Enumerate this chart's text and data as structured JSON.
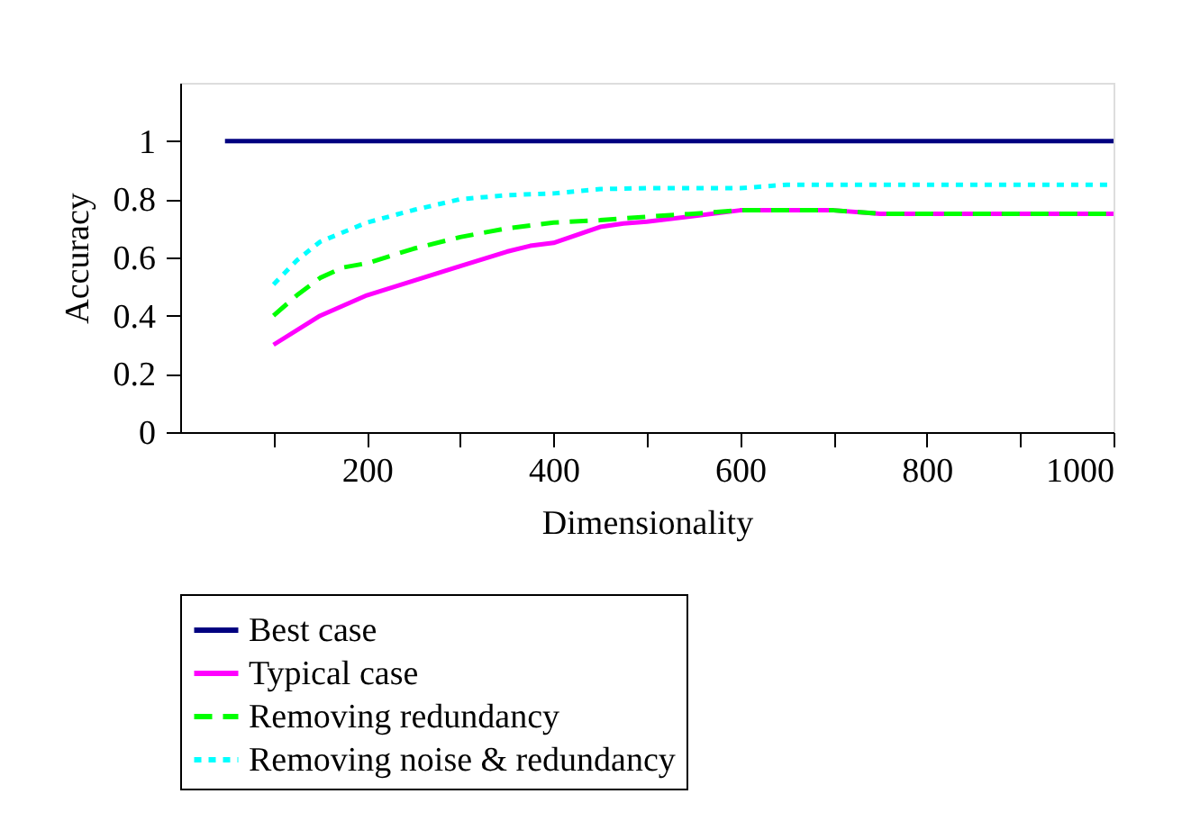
{
  "chart_data": {
    "type": "line",
    "xlabel": "Dimensionality",
    "ylabel": "Accuracy",
    "xlim": [
      0,
      1000
    ],
    "ylim": [
      0,
      1.2
    ],
    "xticks": [
      {
        "value": 100,
        "label": null
      },
      200,
      {
        "value": 300,
        "label": null
      },
      400,
      {
        "value": 500,
        "label": null
      },
      600,
      {
        "value": 700,
        "label": null
      },
      800,
      {
        "value": 900,
        "label": null
      },
      1000
    ],
    "yticks": [
      0,
      0.2,
      0.4,
      0.6,
      0.8,
      1
    ],
    "grid": false,
    "legend": "bottom",
    "marker": "none",
    "series": [
      {
        "name": "Best case",
        "color": "#000080",
        "line_style": "solid",
        "x": [
          48,
          1000
        ],
        "values": [
          1,
          1
        ]
      },
      {
        "name": "Typical case",
        "color": "#ff00ff",
        "line_style": "solid",
        "x": [
          100,
          150,
          200,
          250,
          300,
          350,
          375,
          400,
          450,
          475,
          500,
          550,
          600,
          700,
          750,
          1000
        ],
        "values": [
          0.3,
          0.4,
          0.47,
          0.52,
          0.57,
          0.62,
          0.64,
          0.65,
          0.705,
          0.717,
          0.723,
          0.742,
          0.762,
          0.762,
          0.75,
          0.75
        ]
      },
      {
        "name": "Removing redundancy",
        "color": "#00ff00",
        "line_style": "dashed",
        "x": [
          100,
          125,
          150,
          175,
          200,
          250,
          300,
          350,
          400,
          450,
          500,
          550,
          600,
          700,
          750,
          1000
        ],
        "values": [
          0.4,
          0.47,
          0.53,
          0.566,
          0.58,
          0.63,
          0.67,
          0.7,
          0.72,
          0.728,
          0.74,
          0.75,
          0.762,
          0.762,
          0.75,
          0.75
        ]
      },
      {
        "name": "Removing noise & redundancy",
        "color": "#00ffff",
        "line_style": "dotted",
        "x": [
          100,
          125,
          150,
          200,
          250,
          300,
          350,
          400,
          450,
          500,
          600,
          650,
          1000
        ],
        "values": [
          0.507,
          0.59,
          0.654,
          0.72,
          0.763,
          0.8,
          0.814,
          0.82,
          0.835,
          0.838,
          0.838,
          0.85,
          0.85
        ]
      }
    ]
  }
}
